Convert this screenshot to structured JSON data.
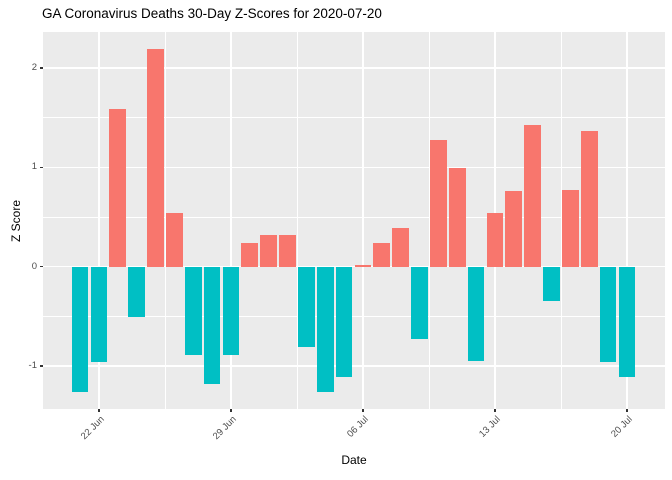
{
  "chart_data": {
    "type": "bar",
    "title": "GA Coronavirus Deaths 30-Day Z-Scores for 2020-07-20",
    "xlabel": "Date",
    "ylabel": "Z Score",
    "x": [
      "21 Jun",
      "22 Jun",
      "23 Jun",
      "24 Jun",
      "25 Jun",
      "26 Jun",
      "27 Jun",
      "28 Jun",
      "29 Jun",
      "30 Jun",
      "01 Jul",
      "02 Jul",
      "03 Jul",
      "04 Jul",
      "05 Jul",
      "06 Jul",
      "07 Jul",
      "08 Jul",
      "09 Jul",
      "10 Jul",
      "11 Jul",
      "12 Jul",
      "13 Jul",
      "14 Jul",
      "15 Jul",
      "16 Jul",
      "17 Jul",
      "18 Jul",
      "19 Jul",
      "20 Jul"
    ],
    "values": [
      -1.26,
      -0.96,
      1.59,
      -0.51,
      2.19,
      0.54,
      -0.89,
      -1.18,
      -0.89,
      0.24,
      0.32,
      0.32,
      -0.81,
      -1.26,
      -1.11,
      0.02,
      0.24,
      0.39,
      -0.73,
      1.28,
      0.99,
      -0.95,
      0.54,
      0.76,
      1.43,
      -0.35,
      0.77,
      1.37,
      -0.96,
      -1.11
    ],
    "ylim": [
      -1.44,
      2.36
    ],
    "y_major_ticks": [
      -1,
      0,
      1,
      2
    ],
    "y_minor_ticks": [
      -0.5,
      0.5,
      1.5
    ],
    "x_tick_labels": [
      "22 Jun",
      "29 Jun",
      "06 Jul",
      "13 Jul",
      "20 Jul"
    ],
    "x_tick_day_indices": [
      1,
      8,
      15,
      22,
      29
    ],
    "x_minor_day_indices": [
      4.5,
      11.5,
      18.5,
      25.5
    ],
    "legend": "none",
    "grid": "on",
    "positive_color": "#F8766D",
    "negative_color": "#00BFC4",
    "panel_background": "#EBEBEB",
    "grid_color": "#FFFFFF",
    "tick_label_color": "#4D4D4D",
    "tick_mark_color": "#333333"
  }
}
